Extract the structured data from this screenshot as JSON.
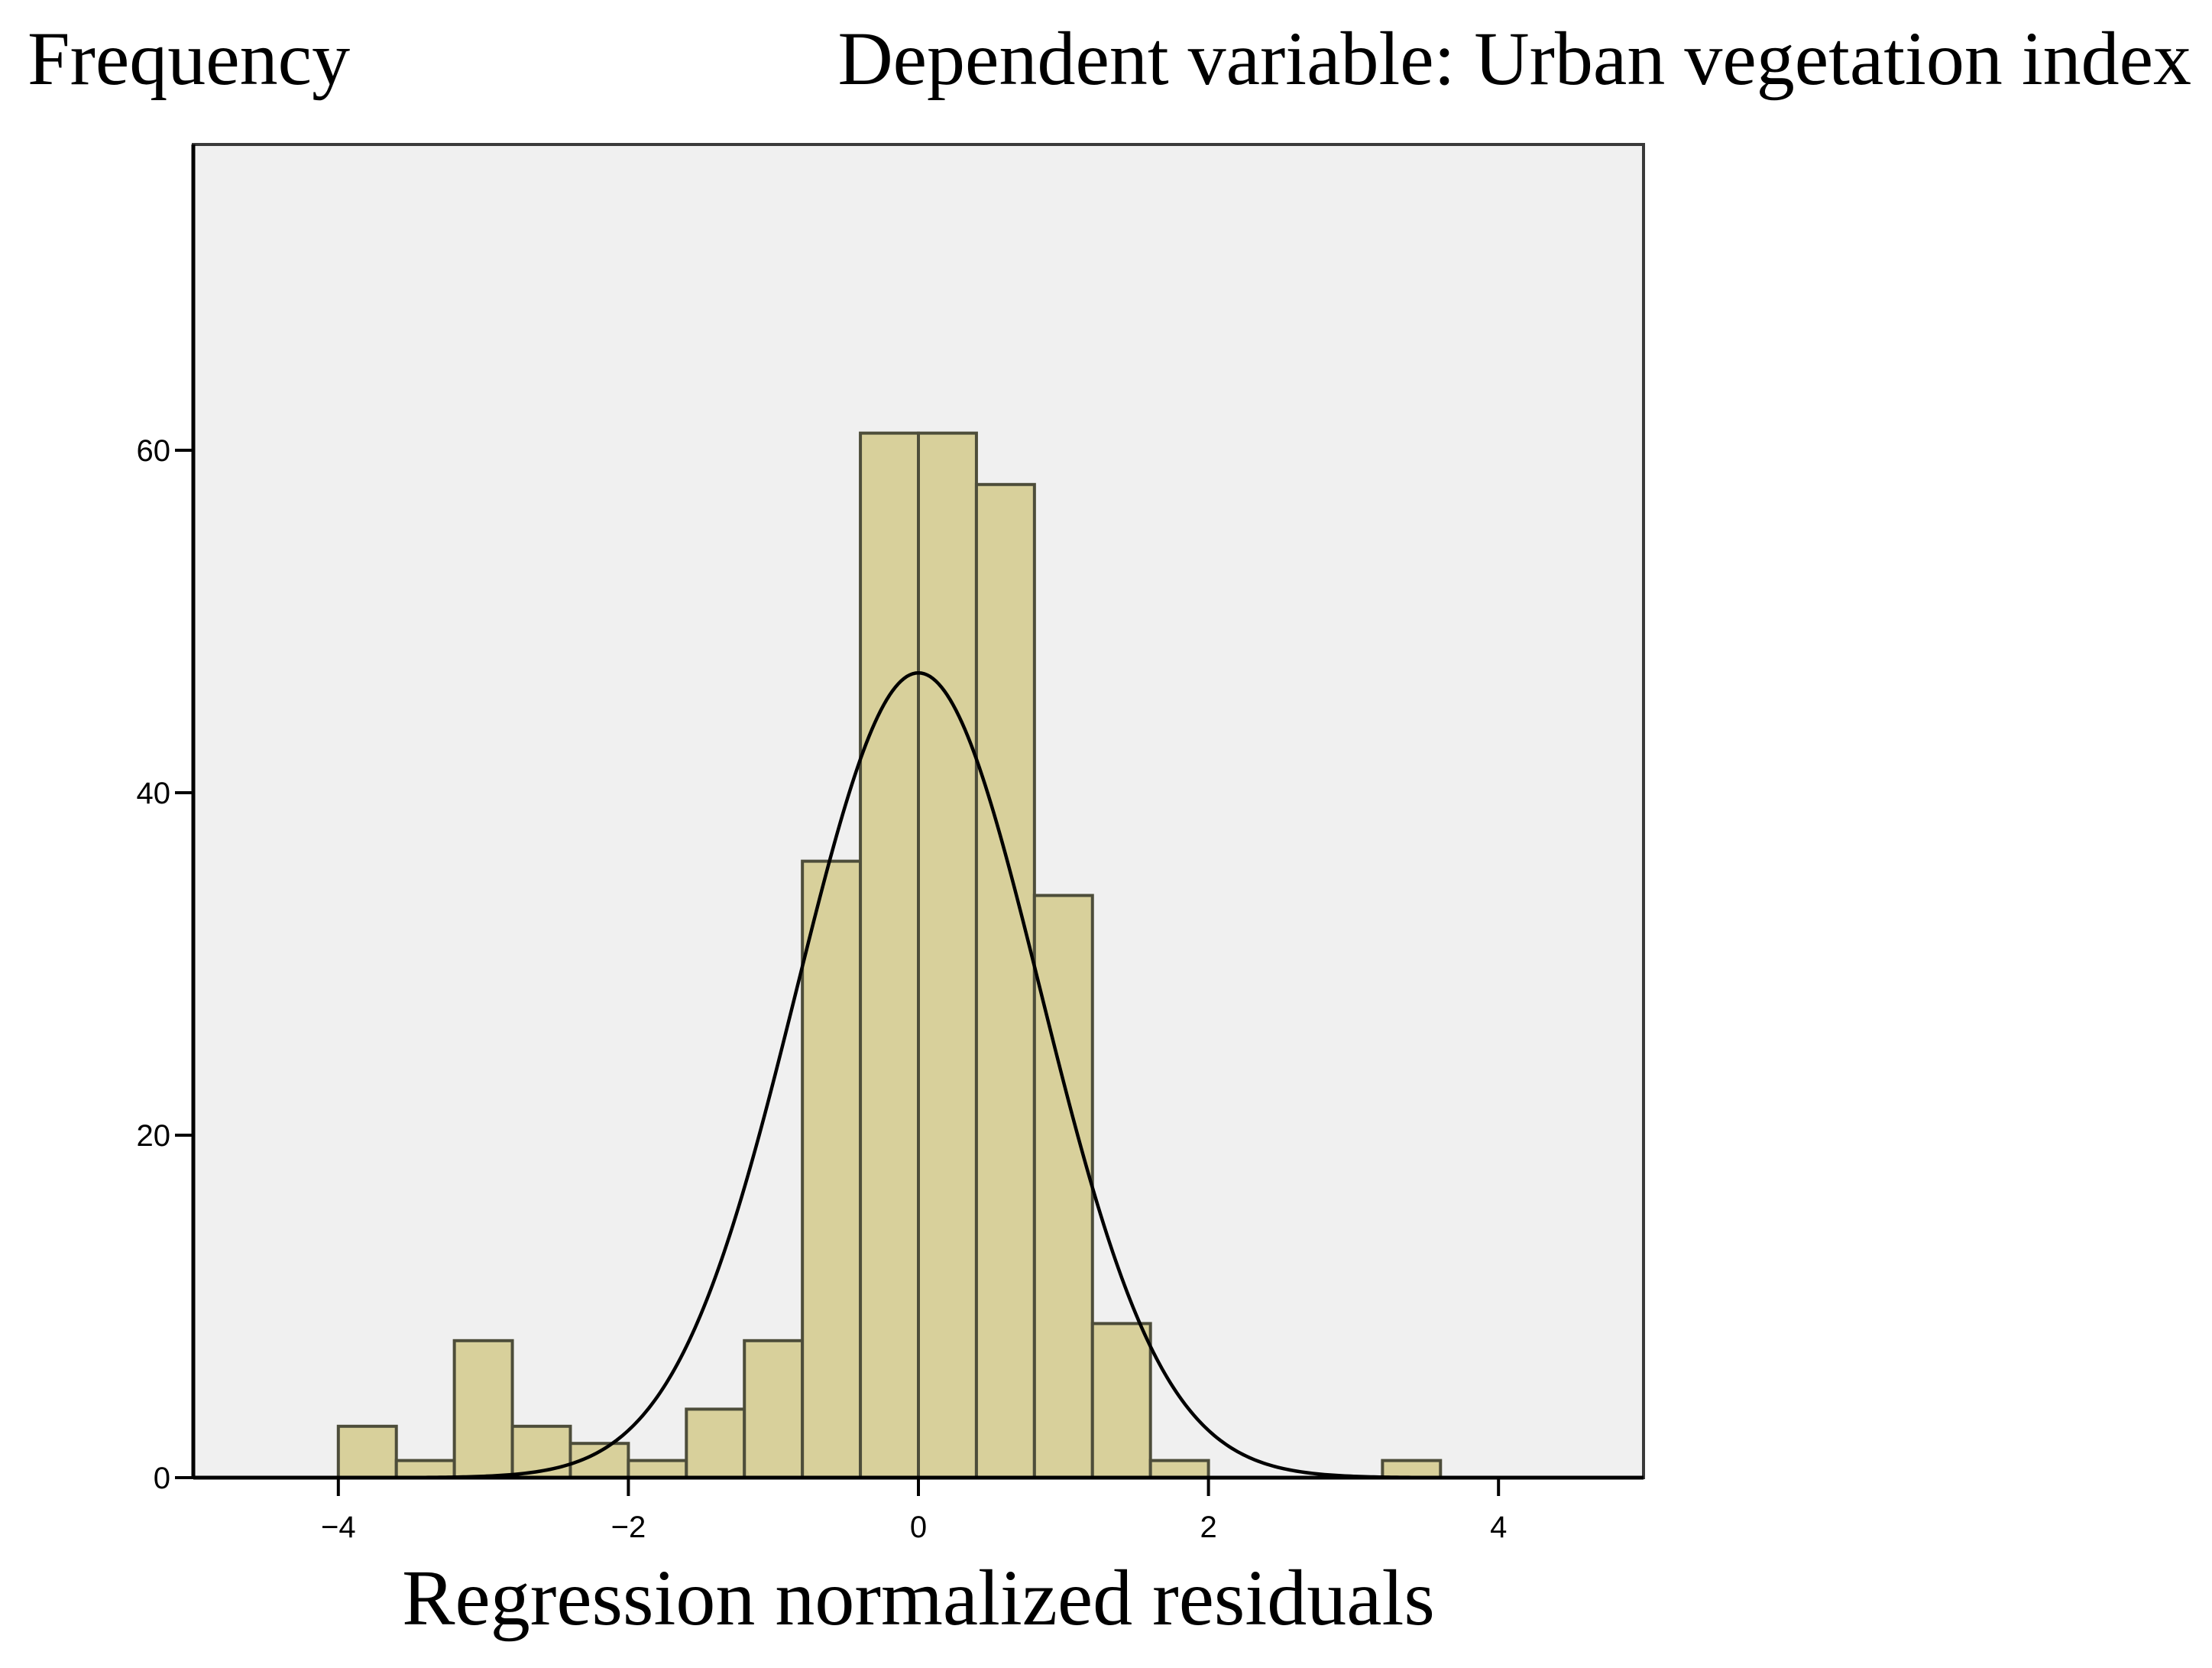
{
  "chart_data": {
    "type": "bar",
    "subtype": "histogram",
    "ylabel": "Frequency",
    "title": "Dependent variable: Urban vegetation index",
    "xlabel": "Regression normalized residuals",
    "xlim": [
      -5,
      5
    ],
    "ylim": [
      0,
      75
    ],
    "xticks": [
      -4,
      -2,
      0,
      2,
      4
    ],
    "xtick_labels": [
      "−4",
      "−2",
      "0",
      "2",
      "4"
    ],
    "yticks": [
      0,
      20,
      40,
      60
    ],
    "ytick_labels": [
      "0",
      "20",
      "40",
      "60"
    ],
    "bin_width": 0.4,
    "bins": [
      {
        "x0": -4.0,
        "x1": -3.6,
        "count": 3
      },
      {
        "x0": -3.6,
        "x1": -3.2,
        "count": 1
      },
      {
        "x0": -3.2,
        "x1": -2.8,
        "count": 8
      },
      {
        "x0": -2.8,
        "x1": -2.4,
        "count": 3
      },
      {
        "x0": -2.4,
        "x1": -2.0,
        "count": 2
      },
      {
        "x0": -2.0,
        "x1": -1.6,
        "count": 1
      },
      {
        "x0": -1.6,
        "x1": -1.2,
        "count": 4
      },
      {
        "x0": -1.2,
        "x1": -0.8,
        "count": 8
      },
      {
        "x0": -0.8,
        "x1": -0.4,
        "count": 36
      },
      {
        "x0": -0.4,
        "x1": 0.0,
        "count": 61
      },
      {
        "x0": 0.0,
        "x1": 0.4,
        "count": 61
      },
      {
        "x0": 0.4,
        "x1": 0.8,
        "count": 58
      },
      {
        "x0": 0.8,
        "x1": 1.2,
        "count": 34
      },
      {
        "x0": 1.2,
        "x1": 1.6,
        "count": 9
      },
      {
        "x0": 1.6,
        "x1": 2.0,
        "count": 1
      },
      {
        "x0": 3.2,
        "x1": 3.6,
        "count": 1
      }
    ],
    "normal_curve": {
      "mean": 0,
      "sd": 0.84,
      "peak": 47
    },
    "colors": {
      "plot_background": "#f0f0f0",
      "bar_fill": "#d8d09b",
      "bar_stroke": "#4d4d3a",
      "curve": "#000000",
      "axis": "#000000"
    },
    "grid": false,
    "legend": "none"
  }
}
